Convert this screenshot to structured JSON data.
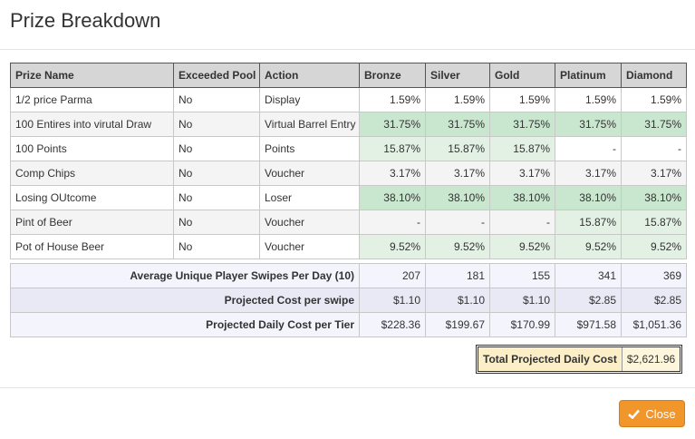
{
  "header": {
    "title": "Prize Breakdown"
  },
  "table": {
    "columns": [
      "Prize Name",
      "Exceeded Pool",
      "Action",
      "Bronze",
      "Silver",
      "Gold",
      "Platinum",
      "Diamond"
    ],
    "rows": [
      [
        "1/2 price Parma",
        "No",
        "Display",
        "1.59%",
        "1.59%",
        "1.59%",
        "1.59%",
        "1.59%"
      ],
      [
        "100 Entires into virutal Draw",
        "No",
        "Virtual Barrel Entry",
        "31.75%",
        "31.75%",
        "31.75%",
        "31.75%",
        "31.75%"
      ],
      [
        "100 Points",
        "No",
        "Points",
        "15.87%",
        "15.87%",
        "15.87%",
        "-",
        "-"
      ],
      [
        "Comp Chips",
        "No",
        "Voucher",
        "3.17%",
        "3.17%",
        "3.17%",
        "3.17%",
        "3.17%"
      ],
      [
        "Losing OUtcome",
        "No",
        "Loser",
        "38.10%",
        "38.10%",
        "38.10%",
        "38.10%",
        "38.10%"
      ],
      [
        "Pint of Beer",
        "No",
        "Voucher",
        "-",
        "-",
        "-",
        "15.87%",
        "15.87%"
      ],
      [
        "Pot of House Beer",
        "No",
        "Voucher",
        "9.52%",
        "9.52%",
        "9.52%",
        "9.52%",
        "9.52%"
      ]
    ]
  },
  "summary": {
    "rows": [
      [
        "Average Unique Player Swipes Per Day (10)",
        "207",
        "181",
        "155",
        "341",
        "369"
      ],
      [
        "Projected Cost per swipe",
        "$1.10",
        "$1.10",
        "$1.10",
        "$2.85",
        "$2.85"
      ],
      [
        "Projected Daily Cost per Tier",
        "$228.36",
        "$199.67",
        "$170.99",
        "$971.58",
        "$1,051.36"
      ]
    ]
  },
  "total": {
    "label": "Total Projected Daily Cost",
    "value": "$2,621.96"
  },
  "footer": {
    "button": "Close"
  }
}
